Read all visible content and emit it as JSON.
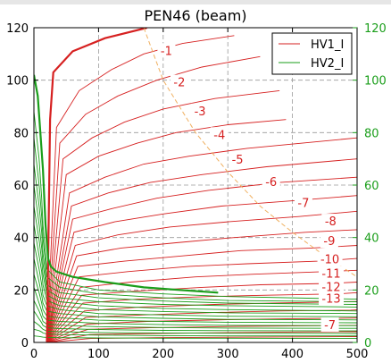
{
  "chart_data": {
    "type": "line",
    "title": "PEN46  (beam)",
    "xlim": [
      0,
      500
    ],
    "ylim": [
      0,
      120
    ],
    "ylim_right": [
      0,
      120
    ],
    "x_ticks": [
      "0",
      "100",
      "200",
      "300",
      "400",
      "500"
    ],
    "y_ticks_left": [
      "0",
      "20",
      "40",
      "60",
      "80",
      "100",
      "120"
    ],
    "y_ticks_right": [
      "0",
      "20",
      "40",
      "60",
      "80",
      "100",
      "120"
    ],
    "grid": true,
    "legend_placement": "top-right",
    "colors": {
      "hv1": "#d62020",
      "hv2": "#1a9e1a",
      "right_axis": "#1a9e1a",
      "dashed": "#f0b060",
      "grid": "#9a9a9a"
    },
    "series": [
      {
        "name": "HV1_I",
        "color": "#d62020"
      },
      {
        "name": "HV2_I",
        "color": "#1a9e1a"
      }
    ],
    "red_contours": [
      {
        "x": [
          20,
          22,
          25,
          30,
          60,
          110,
          175
        ],
        "y": [
          0,
          30,
          85,
          103,
          111,
          116,
          120
        ]
      },
      {
        "x": [
          20,
          35,
          70,
          120,
          170,
          230,
          310
        ],
        "y": [
          0,
          82,
          96,
          104,
          110,
          114,
          117
        ]
      },
      {
        "x": [
          20,
          40,
          80,
          130,
          190,
          260,
          350
        ],
        "y": [
          0,
          76,
          87,
          94,
          100,
          105,
          109
        ]
      },
      {
        "x": [
          20,
          45,
          90,
          140,
          200,
          280,
          380
        ],
        "y": [
          0,
          70,
          78,
          84,
          89,
          93,
          96
        ]
      },
      {
        "x": [
          20,
          50,
          100,
          160,
          220,
          300,
          390
        ],
        "y": [
          0,
          64,
          71,
          76,
          80,
          83,
          85
        ]
      },
      {
        "x": [
          20,
          55,
          110,
          170,
          240,
          330,
          500
        ],
        "y": [
          0,
          57,
          63,
          68,
          71,
          74,
          78
        ]
      },
      {
        "x": [
          20,
          58,
          115,
          180,
          260,
          360,
          500
        ],
        "y": [
          0,
          52,
          57,
          61,
          64,
          67,
          70
        ]
      },
      {
        "x": [
          20,
          60,
          120,
          190,
          270,
          380,
          500
        ],
        "y": [
          0,
          47,
          51,
          55,
          58,
          61,
          63
        ]
      },
      {
        "x": [
          20,
          62,
          125,
          200,
          290,
          400,
          500
        ],
        "y": [
          0,
          42,
          46,
          49,
          52,
          54,
          56
        ]
      },
      {
        "x": [
          20,
          64,
          130,
          210,
          300,
          410,
          500
        ],
        "y": [
          0,
          37,
          41,
          44,
          46,
          48,
          50
        ]
      },
      {
        "x": [
          20,
          66,
          135,
          220,
          310,
          420,
          500
        ],
        "y": [
          0,
          33,
          36,
          38,
          40,
          42,
          43
        ]
      },
      {
        "x": [
          20,
          68,
          140,
          230,
          320,
          430,
          500
        ],
        "y": [
          0,
          29,
          31,
          33,
          35,
          36,
          37
        ]
      },
      {
        "x": [
          20,
          70,
          145,
          240,
          330,
          440,
          500
        ],
        "y": [
          0,
          25,
          27,
          29,
          30,
          31,
          32
        ]
      },
      {
        "x": [
          20,
          72,
          150,
          250,
          340,
          450,
          500
        ],
        "y": [
          0,
          21,
          23,
          25,
          26,
          27,
          27.5
        ]
      },
      {
        "x": [
          20,
          74,
          155,
          260,
          350,
          460,
          500
        ],
        "y": [
          0,
          18,
          19.5,
          21,
          22,
          22.5,
          23
        ]
      },
      {
        "x": [
          20,
          76,
          160,
          270,
          360,
          470,
          500
        ],
        "y": [
          0,
          15,
          16.5,
          17.5,
          18,
          18.5,
          19
        ]
      },
      {
        "x": [
          20,
          78,
          165,
          280,
          370,
          480,
          500
        ],
        "y": [
          0,
          12,
          13.5,
          14.5,
          15,
          15.5,
          15.6
        ]
      },
      {
        "x": [
          20,
          80,
          170,
          290,
          380,
          490,
          500
        ],
        "y": [
          0,
          9.5,
          10.5,
          11.5,
          12,
          12.3,
          12.4
        ]
      },
      {
        "x": [
          20,
          82,
          175,
          300,
          390,
          500
        ],
        "y": [
          0,
          7,
          8,
          8.7,
          9,
          9.3
        ]
      },
      {
        "x": [
          20,
          84,
          180,
          310,
          400,
          500
        ],
        "y": [
          0,
          5,
          5.6,
          6.1,
          6.3,
          6.5
        ]
      },
      {
        "x": [
          20,
          86,
          185,
          320,
          410,
          500
        ],
        "y": [
          0,
          3,
          3.4,
          3.8,
          4,
          4.1
        ]
      },
      {
        "x": [
          20,
          88,
          190,
          330,
          420,
          500
        ],
        "y": [
          0,
          1.5,
          1.8,
          2,
          2.1,
          2.2
        ]
      }
    ],
    "green_contours": [
      {
        "x": [
          0,
          6,
          10,
          14,
          16,
          18,
          20,
          22,
          26,
          35,
          60,
          110,
          170,
          225,
          285
        ],
        "y": [
          102,
          94,
          80,
          66,
          55,
          45,
          38,
          32,
          29,
          27,
          25,
          23,
          21,
          20,
          19
        ]
      },
      {
        "x": [
          0,
          8,
          12,
          14,
          20,
          40,
          100,
          200,
          300,
          500
        ],
        "y": [
          88,
          70,
          55,
          45,
          28,
          23,
          20,
          18.5,
          17.5,
          16.5
        ]
      },
      {
        "x": [
          0,
          8,
          12,
          14,
          20,
          40,
          100,
          200,
          300,
          500
        ],
        "y": [
          78,
          60,
          48,
          40,
          25,
          21,
          18.5,
          17,
          16,
          15.5
        ]
      },
      {
        "x": [
          0,
          8,
          12,
          14,
          20,
          40,
          100,
          200,
          300,
          500
        ],
        "y": [
          68,
          52,
          42,
          34,
          22,
          19,
          17,
          15.8,
          15,
          14.5
        ]
      },
      {
        "x": [
          0,
          8,
          12,
          14,
          20,
          40,
          100,
          200,
          300,
          500
        ],
        "y": [
          60,
          45,
          36,
          30,
          20,
          17,
          15.5,
          14.5,
          14,
          13.5
        ]
      },
      {
        "x": [
          0,
          8,
          12,
          14,
          20,
          40,
          100,
          200,
          300,
          500
        ],
        "y": [
          52,
          39,
          31,
          26,
          18,
          15.5,
          14,
          13,
          12.5,
          12
        ]
      },
      {
        "x": [
          0,
          8,
          12,
          14,
          20,
          40,
          100,
          200,
          300,
          500
        ],
        "y": [
          45,
          33,
          27,
          22,
          16,
          14,
          12.5,
          11.8,
          11.3,
          11
        ]
      },
      {
        "x": [
          0,
          8,
          12,
          14,
          20,
          40,
          100,
          200,
          300,
          500
        ],
        "y": [
          38,
          28,
          22,
          18,
          14,
          12.5,
          11,
          10.5,
          10,
          9.8
        ]
      },
      {
        "x": [
          0,
          8,
          12,
          14,
          20,
          40,
          100,
          200,
          300,
          500
        ],
        "y": [
          32,
          23,
          18,
          15,
          12,
          11,
          9.8,
          9.2,
          8.8,
          8.6
        ]
      },
      {
        "x": [
          0,
          8,
          12,
          14,
          20,
          40,
          100,
          200,
          300,
          500
        ],
        "y": [
          26,
          19,
          15,
          12.5,
          10,
          9.4,
          8.5,
          8,
          7.7,
          7.5
        ]
      },
      {
        "x": [
          0,
          8,
          12,
          14,
          20,
          40,
          100,
          200,
          300,
          500
        ],
        "y": [
          21,
          15,
          12,
          10,
          8.5,
          8,
          7.3,
          6.8,
          6.5,
          6.4
        ]
      },
      {
        "x": [
          0,
          8,
          12,
          14,
          20,
          40,
          100,
          200,
          300,
          500
        ],
        "y": [
          16,
          12,
          9.5,
          8,
          7,
          6.6,
          6,
          5.7,
          5.5,
          5.4
        ]
      },
      {
        "x": [
          0,
          8,
          12,
          14,
          20,
          40,
          100,
          200,
          300,
          500
        ],
        "y": [
          12,
          9,
          7.5,
          6.5,
          5.6,
          5.3,
          4.9,
          4.6,
          4.5,
          4.4
        ]
      },
      {
        "x": [
          0,
          8,
          12,
          14,
          20,
          40,
          100,
          200,
          300,
          500
        ],
        "y": [
          8,
          6.5,
          5.5,
          5,
          4.3,
          4.1,
          3.8,
          3.6,
          3.5,
          3.4
        ]
      },
      {
        "x": [
          0,
          8,
          12,
          14,
          20,
          40,
          100,
          200,
          300,
          500
        ],
        "y": [
          5,
          4.5,
          4,
          3.6,
          3.2,
          3,
          2.8,
          2.6,
          2.5,
          2.5
        ]
      },
      {
        "x": [
          0,
          8,
          12,
          14,
          20,
          40,
          100,
          200,
          300,
          500
        ],
        "y": [
          2.5,
          2.3,
          2.1,
          2,
          1.9,
          1.8,
          1.7,
          1.6,
          1.6,
          1.5
        ]
      }
    ],
    "highlight_red": {
      "x": [
        20,
        22,
        25,
        30,
        60,
        110,
        175
      ],
      "y": [
        0,
        30,
        85,
        103,
        111,
        116,
        120
      ]
    },
    "highlight_green": {
      "x": [
        0,
        6,
        10,
        14,
        16,
        18,
        20,
        22,
        26,
        35,
        60,
        110,
        170,
        225,
        285
      ],
      "y": [
        102,
        94,
        80,
        66,
        55,
        45,
        38,
        32,
        29,
        27,
        25,
        23,
        21,
        20,
        19
      ]
    },
    "dashed_line": {
      "x": [
        170,
        200,
        250,
        300,
        350,
        400,
        450,
        500
      ],
      "y": [
        120,
        100,
        80,
        65,
        52,
        42,
        33,
        25
      ]
    },
    "contour_labels": [
      {
        "text": "-1",
        "x": 205,
        "y": 111
      },
      {
        "text": "-2",
        "x": 225,
        "y": 99
      },
      {
        "text": "-3",
        "x": 257,
        "y": 88
      },
      {
        "text": "-4",
        "x": 287,
        "y": 79
      },
      {
        "text": "-5",
        "x": 315,
        "y": 69.5
      },
      {
        "text": "-6",
        "x": 367,
        "y": 61
      },
      {
        "text": "-7",
        "x": 417,
        "y": 53
      },
      {
        "text": "-8",
        "x": 459,
        "y": 46
      },
      {
        "text": "-9",
        "x": 457,
        "y": 38.5
      },
      {
        "text": "-10",
        "x": 458,
        "y": 31.5
      },
      {
        "text": "-11",
        "x": 460,
        "y": 26
      },
      {
        "text": "-12",
        "x": 460,
        "y": 21
      },
      {
        "text": "-13",
        "x": 460,
        "y": 16.5
      },
      {
        "text": "-7",
        "x": 458,
        "y": 6.5
      }
    ]
  }
}
